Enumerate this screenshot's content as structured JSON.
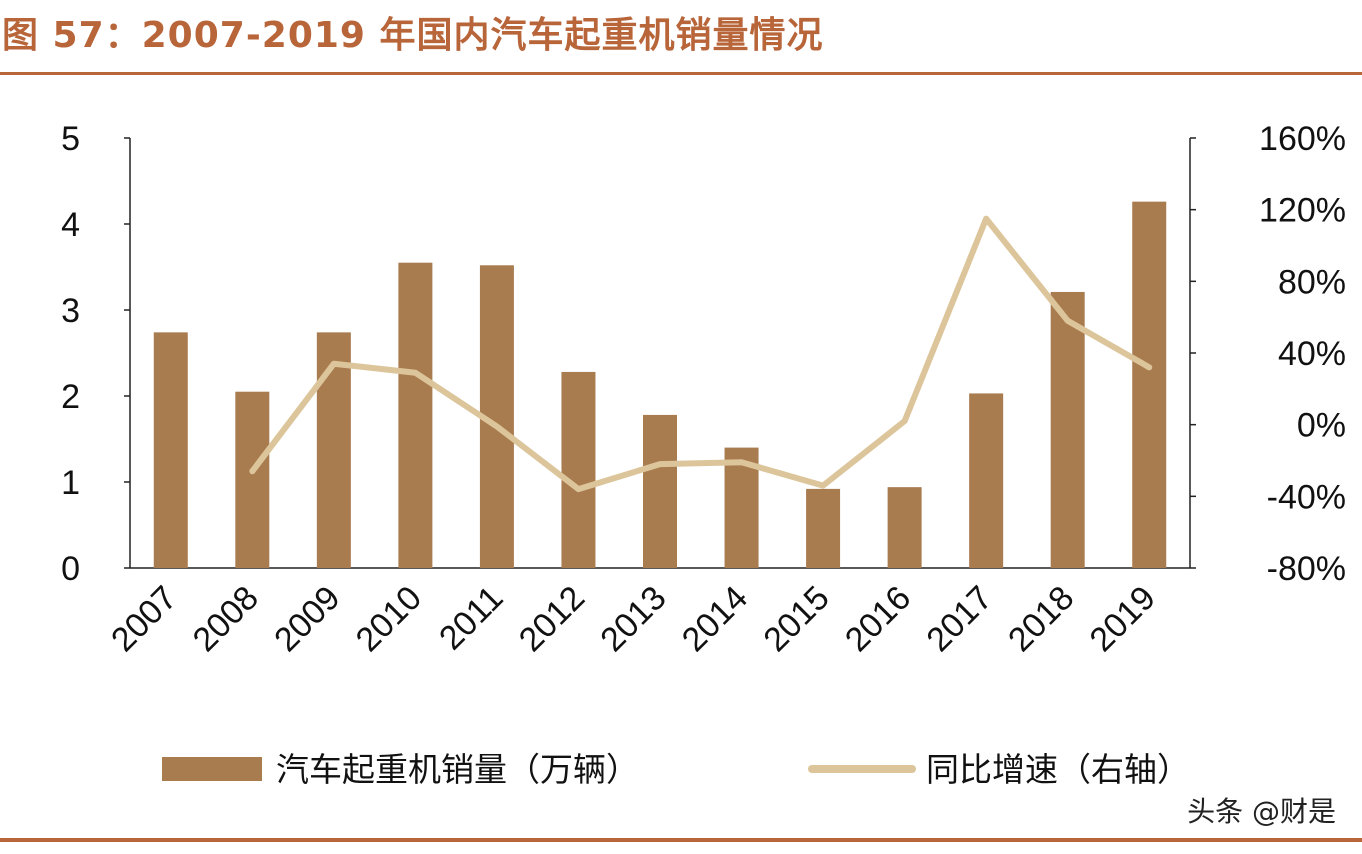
{
  "title": "图 57：2007-2019 年国内汽车起重机销量情况",
  "watermark": "头条 @财是",
  "colors": {
    "title": "#b8653a",
    "bar": "#a97c50",
    "line": "#dcc59a",
    "rule": "#b8653a"
  },
  "chart_data": {
    "type": "bar+line",
    "title": "图 57：2007-2019 年国内汽车起重机销量情况",
    "categories": [
      "2007",
      "2008",
      "2009",
      "2010",
      "2011",
      "2012",
      "2013",
      "2014",
      "2015",
      "2016",
      "2017",
      "2018",
      "2019"
    ],
    "series": [
      {
        "name": "汽车起重机销量（万辆）",
        "type": "bar",
        "axis": "left",
        "values": [
          2.74,
          2.05,
          2.74,
          3.55,
          3.52,
          2.28,
          1.78,
          1.4,
          0.92,
          0.94,
          2.03,
          3.21,
          4.26
        ]
      },
      {
        "name": "同比增速（右轴）",
        "type": "line",
        "axis": "right",
        "values": [
          null,
          -26,
          34,
          29,
          -1,
          -36,
          -22,
          -21,
          -34,
          2,
          115,
          58,
          32
        ]
      }
    ],
    "y_left": {
      "range": [
        0,
        5
      ],
      "ticks": [
        "0",
        "1",
        "2",
        "3",
        "4",
        "5"
      ]
    },
    "y_right": {
      "range": [
        -80,
        160
      ],
      "unit": "%",
      "ticks": [
        "-80%",
        "-40%",
        "0%",
        "40%",
        "80%",
        "120%",
        "160%"
      ]
    },
    "grid": false,
    "legend": "bottom"
  }
}
